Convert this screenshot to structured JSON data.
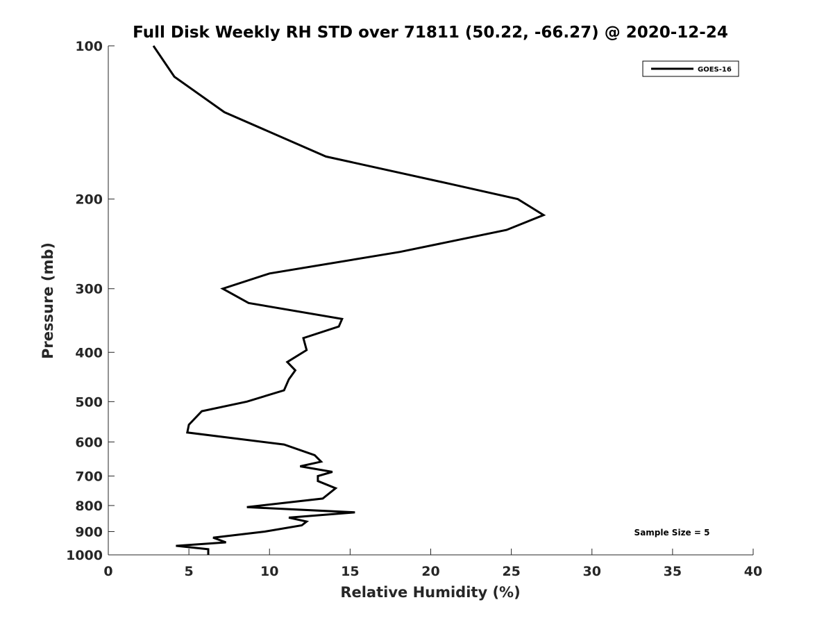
{
  "chart_data": {
    "type": "line",
    "title": "Full Disk Weekly RH STD over 71811 (50.22, -66.27) @ 2020-12-24",
    "xlabel": "Relative Humidity (%)",
    "ylabel": "Pressure (mb)",
    "xlim": [
      0,
      40
    ],
    "ylim": [
      1000,
      100
    ],
    "y_scale": "log",
    "x_ticks": [
      0,
      5,
      10,
      15,
      20,
      25,
      30,
      35,
      40
    ],
    "y_ticks": [
      100,
      200,
      300,
      400,
      500,
      600,
      700,
      800,
      900,
      1000
    ],
    "grid": false,
    "legend": {
      "position": "top-right",
      "entries": [
        "GOES-16"
      ]
    },
    "annotation": "Sample Size = 5",
    "series": [
      {
        "name": "GOES-16",
        "color": "#000000",
        "points": [
          [
            2.8,
            100
          ],
          [
            4.1,
            115
          ],
          [
            7.2,
            135
          ],
          [
            13.5,
            165
          ],
          [
            21.3,
            187
          ],
          [
            25.4,
            200
          ],
          [
            27.0,
            215
          ],
          [
            24.7,
            230
          ],
          [
            18.1,
            254
          ],
          [
            10.0,
            280
          ],
          [
            7.1,
            300
          ],
          [
            8.7,
            320
          ],
          [
            14.5,
            344
          ],
          [
            14.3,
            356
          ],
          [
            12.1,
            375
          ],
          [
            12.3,
            396
          ],
          [
            11.1,
            418
          ],
          [
            11.6,
            434
          ],
          [
            11.2,
            452
          ],
          [
            10.9,
            475
          ],
          [
            8.6,
            500
          ],
          [
            5.8,
            522
          ],
          [
            5.0,
            555
          ],
          [
            4.9,
            575
          ],
          [
            10.9,
            607
          ],
          [
            12.8,
            637
          ],
          [
            13.2,
            656
          ],
          [
            11.9,
            670
          ],
          [
            13.9,
            687
          ],
          [
            13.0,
            700
          ],
          [
            13.0,
            716
          ],
          [
            14.1,
            740
          ],
          [
            13.3,
            775
          ],
          [
            8.6,
            806
          ],
          [
            15.3,
            825
          ],
          [
            11.2,
            845
          ],
          [
            12.3,
            860
          ],
          [
            12.0,
            875
          ],
          [
            9.7,
            900
          ],
          [
            6.5,
            925
          ],
          [
            7.3,
            945
          ],
          [
            4.2,
            960
          ],
          [
            6.2,
            975
          ],
          [
            6.2,
            1000
          ]
        ]
      }
    ]
  }
}
